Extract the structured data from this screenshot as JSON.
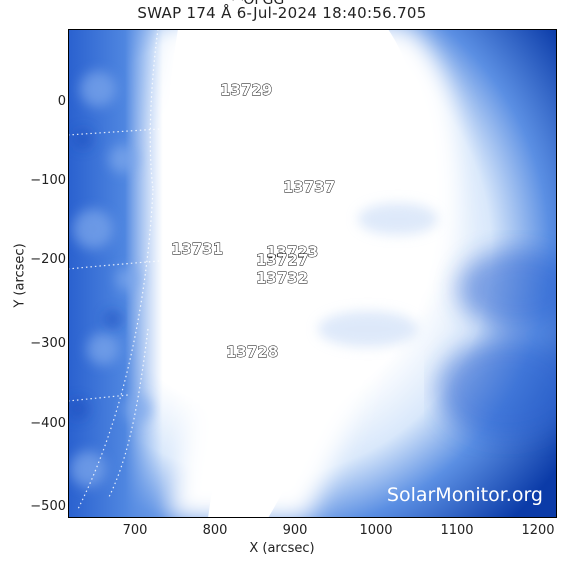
{
  "header": {
    "title": "SWAP 174 Å  6-Jul-2024 18:40:56.705",
    "partial_top_text": "ꟷOFGG"
  },
  "axes": {
    "x_title": "X (arcsec)",
    "y_title": "Y (arcsec)",
    "x_ticks": [
      "700",
      "800",
      "900",
      "1000",
      "1100",
      "1200"
    ],
    "y_ticks": [
      "0",
      "−100",
      "−200",
      "−300",
      "−400",
      "−500"
    ]
  },
  "active_regions": [
    {
      "label": "13729"
    },
    {
      "label": "13737"
    },
    {
      "label": "13731"
    },
    {
      "label": "13723"
    },
    {
      "label": "13727"
    },
    {
      "label": "13732"
    },
    {
      "label": "13728"
    }
  ],
  "watermark": "SolarMonitor.org",
  "colors": {
    "background_deep_blue": "#0a3aa8",
    "corona_white": "#ffffff",
    "mid_blue": "#3f74d8"
  }
}
